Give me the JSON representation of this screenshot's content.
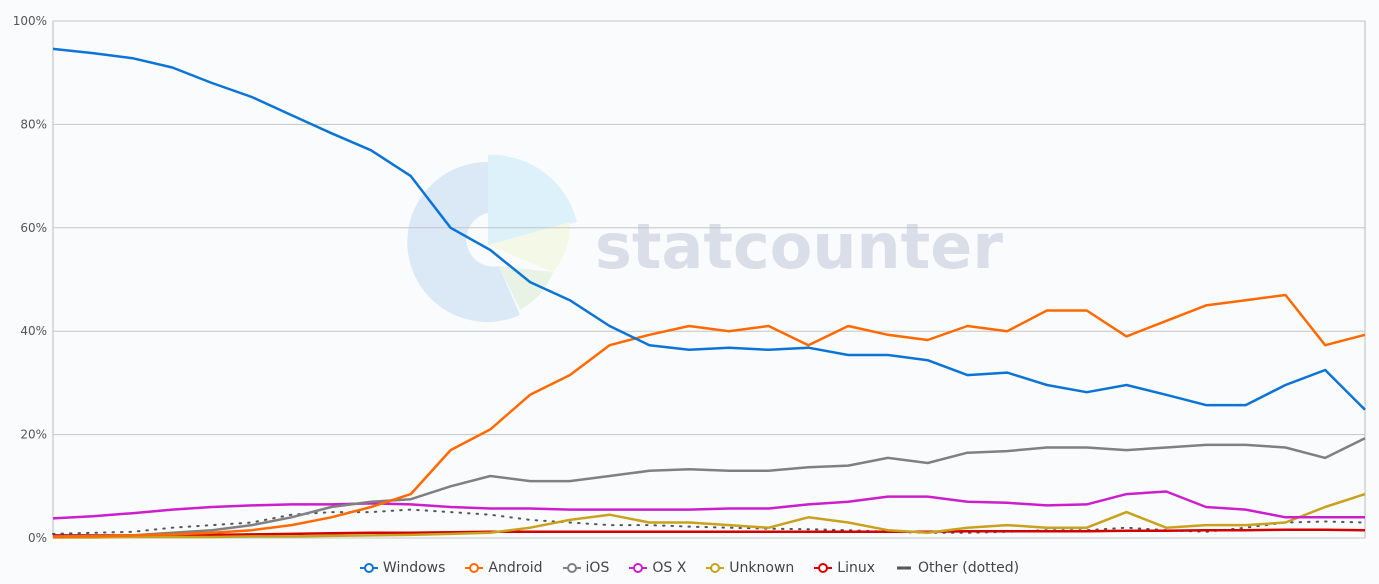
{
  "chart_data": {
    "type": "line",
    "title": "",
    "xlabel": "",
    "ylabel": "",
    "ylim": [
      0,
      100
    ],
    "y_ticks": [
      "0%",
      "20%",
      "40%",
      "60%",
      "80%",
      "100%"
    ],
    "y_tick_values": [
      0,
      20,
      40,
      60,
      80,
      100
    ],
    "grid": true,
    "legend_position": "bottom",
    "watermark": "statcounter",
    "series": [
      {
        "name": "Windows",
        "color": "#0b74d5",
        "marker": "hollow-circle",
        "values": [
          94.6,
          93.8,
          92.8,
          91,
          88,
          85.3,
          81.8,
          78.3,
          75,
          70,
          60,
          55.7,
          49.5,
          46,
          41,
          37.3,
          36.4,
          36.8,
          36.4,
          36.8,
          35.4,
          35.4,
          34.4,
          31.5,
          32,
          29.6,
          28.2,
          29.6,
          27.7,
          25.7,
          25.7,
          29.6,
          32.5,
          24.8
        ]
      },
      {
        "name": "Android",
        "color": "#ff6a00",
        "marker": "hollow-circle",
        "values": [
          0.2,
          0.3,
          0.5,
          0.7,
          1,
          1.5,
          2.5,
          4,
          6,
          8.5,
          17,
          21,
          27.7,
          31.5,
          37.3,
          39.3,
          41,
          40,
          41,
          37.3,
          41,
          39.3,
          38.3,
          41,
          40,
          44,
          44,
          39,
          42,
          45,
          46,
          47,
          37.3,
          39.3
        ]
      },
      {
        "name": "iOS",
        "color": "#808080",
        "marker": "hollow-circle",
        "values": [
          0.3,
          0.4,
          0.5,
          1,
          1.5,
          2.5,
          4,
          6,
          7,
          7.5,
          10,
          12,
          11,
          11,
          12,
          13,
          13.3,
          13,
          13,
          13.7,
          14,
          15.5,
          14.5,
          16.5,
          16.8,
          17.5,
          17.5,
          17,
          17.5,
          18,
          18,
          17.5,
          15.5,
          19.3
        ]
      },
      {
        "name": "OS X",
        "color": "#cc1fcc",
        "marker": "hollow-circle",
        "values": [
          3.8,
          4.2,
          4.8,
          5.5,
          6,
          6.3,
          6.5,
          6.5,
          6.7,
          6.5,
          6,
          5.7,
          5.7,
          5.5,
          5.5,
          5.5,
          5.5,
          5.7,
          5.7,
          6.5,
          7,
          8,
          8,
          7,
          6.8,
          6.3,
          6.5,
          8.5,
          9,
          6,
          5.5,
          4,
          4,
          4
        ]
      },
      {
        "name": "Unknown",
        "color": "#c8a21e",
        "marker": "hollow-circle",
        "values": [
          0.1,
          0.1,
          0.2,
          0.2,
          0.2,
          0.3,
          0.3,
          0.4,
          0.5,
          0.6,
          0.8,
          1,
          2,
          3.5,
          4.5,
          3,
          3,
          2.5,
          2,
          4,
          3,
          1.5,
          1,
          2,
          2.5,
          2,
          2,
          5,
          2,
          2.5,
          2.5,
          3,
          6,
          8.5
        ]
      },
      {
        "name": "Linux",
        "color": "#d40000",
        "marker": "hollow-circle",
        "values": [
          0.5,
          0.5,
          0.5,
          0.6,
          0.6,
          0.7,
          0.8,
          0.9,
          1,
          1,
          1.1,
          1.2,
          1.2,
          1.2,
          1.2,
          1.2,
          1.2,
          1.2,
          1.2,
          1.2,
          1.2,
          1.2,
          1.2,
          1.3,
          1.3,
          1.3,
          1.3,
          1.4,
          1.4,
          1.5,
          1.5,
          1.6,
          1.6,
          1.5
        ]
      },
      {
        "name": "Other (dotted)",
        "color": "#555555",
        "marker": "line",
        "values": [
          0.8,
          1,
          1.2,
          2,
          2.5,
          3,
          4.5,
          5,
          5,
          5.5,
          5,
          4.5,
          3.5,
          3,
          2.5,
          2.5,
          2.2,
          2,
          1.8,
          1.7,
          1.5,
          1.2,
          1,
          1,
          1.2,
          1.5,
          1.5,
          2,
          1.5,
          1.2,
          2,
          3,
          3.2,
          3
        ]
      }
    ]
  }
}
